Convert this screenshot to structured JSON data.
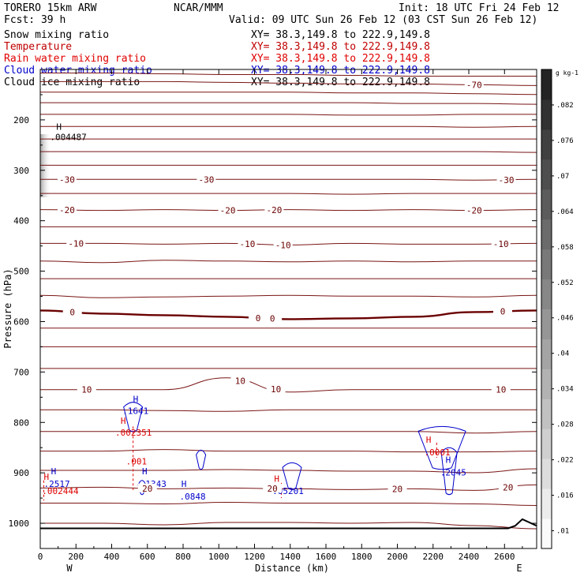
{
  "header": {
    "model": "TORERO   15km ARW",
    "agency": "NCAR/MMM",
    "init": "Init: 18 UTC Fri 24 Feb 12",
    "fcst": "Fcst:   39 h",
    "valid": "Valid: 09 UTC Sun 26 Feb 12 (03 CST Sun 26 Feb 12)"
  },
  "fields": [
    {
      "name": "Snow mixing ratio",
      "xy": "XY=  38.3,149.8 to 222.9,149.8",
      "color": "#000000"
    },
    {
      "name": "Temperature",
      "xy": "XY=  38.3,149.8 to 222.9,149.8",
      "color": "#c00000"
    },
    {
      "name": "Rain water mixing ratio",
      "xy": "XY=  38.3,149.8 to 222.9,149.8",
      "color": "#e00000"
    },
    {
      "name": "Cloud water mixing ratio",
      "xy": "XY=  38.3,149.8 to 222.9,149.8",
      "color": "#0000cc"
    },
    {
      "name": "Cloud ice mixing ratio",
      "xy": "XY=  38.3,149.8 to 222.9,149.8",
      "color": "#000000"
    }
  ],
  "colors": {
    "temperature_contour": "#7a1515",
    "freezing_line": "#6a0000",
    "rain": "#dd0000",
    "cloud_water": "#0000cc",
    "ground": "#000000"
  },
  "chart_data": {
    "type": "contour-cross-section",
    "xlabel": "Distance (km)",
    "ylabel": "Pressure (hPa)",
    "xlim": [
      0,
      2780
    ],
    "ylim": [
      1050,
      100
    ],
    "x_ticks": [
      0,
      200,
      400,
      600,
      800,
      1000,
      1200,
      1400,
      1600,
      1800,
      2000,
      2200,
      2400,
      2600
    ],
    "y_ticks": [
      200,
      300,
      400,
      500,
      600,
      700,
      800,
      900,
      1000
    ],
    "y_scale": "linear pressure, inverted",
    "x_end_labels": {
      "left": "W",
      "right": "E"
    },
    "colorbar": {
      "unit": "g kg-1",
      "ticks": [
        0.01,
        0.016,
        0.022,
        0.028,
        0.034,
        0.04,
        0.046,
        0.052,
        0.058,
        0.064,
        0.07,
        0.076,
        0.082
      ],
      "tick_labels": [
        ".01",
        ".016",
        ".022",
        ".028",
        ".034",
        ".04",
        ".046",
        ".052",
        ".058",
        ".064",
        ".07",
        ".076",
        ".082"
      ],
      "range": [
        0.007,
        0.088
      ]
    },
    "temperature_contours": [
      {
        "p": 1000,
        "var": [
          0,
          0,
          2,
          -1,
          -1,
          0,
          -1,
          3,
          7
        ]
      },
      {
        "p": 960,
        "var": [
          0,
          0,
          1,
          -1,
          0,
          0,
          0,
          1,
          3
        ]
      },
      {
        "p": 930,
        "var": [
          0,
          -1,
          1,
          0,
          1,
          2,
          1,
          3,
          -4
        ],
        "label": "20",
        "label_x": [
          600,
          1300,
          2000,
          2620
        ]
      },
      {
        "p": 895,
        "var": [
          0,
          0,
          0,
          -1,
          0,
          1,
          1,
          3,
          -2
        ]
      },
      {
        "p": 857,
        "var": [
          0,
          0,
          -2,
          0,
          0,
          0,
          1,
          1,
          0
        ]
      },
      {
        "p": 818,
        "var": [
          0,
          0,
          0,
          0,
          0,
          0,
          0,
          2,
          0
        ]
      },
      {
        "p": 775,
        "var": [
          0,
          0,
          1,
          2,
          0,
          0,
          0,
          0,
          0
        ]
      },
      {
        "p": 735,
        "var": [
          0,
          0,
          0,
          -15,
          3,
          0,
          0,
          0,
          0
        ],
        "label": "10",
        "label_x": [
          260,
          1120,
          1320,
          2580
        ]
      },
      {
        "p": 693,
        "var": [
          0,
          0,
          0,
          0,
          0,
          0,
          0,
          0,
          0
        ]
      },
      {
        "p": 650,
        "var": [
          0,
          0,
          0,
          0,
          0,
          0,
          0,
          0,
          0
        ]
      },
      {
        "p": 613,
        "var": [
          0,
          0,
          0,
          0,
          0,
          0,
          0,
          0,
          0
        ]
      },
      {
        "p": 578,
        "var": [
          0,
          4,
          6,
          8,
          11,
          10,
          8,
          2,
          0
        ],
        "label": "0",
        "label_x": [
          180,
          1220,
          1300,
          2590
        ],
        "freezing": true
      },
      {
        "p": 548,
        "var": [
          0,
          3,
          2,
          1,
          0,
          1,
          1,
          2,
          0
        ]
      },
      {
        "p": 515,
        "var": [
          0,
          0,
          0,
          0,
          0,
          0,
          0,
          0,
          0
        ]
      },
      {
        "p": 480,
        "var": [
          0,
          2,
          -1,
          0,
          1,
          0,
          1,
          0,
          0
        ]
      },
      {
        "p": 445,
        "var": [
          0,
          0,
          1,
          0,
          2,
          0,
          1,
          1,
          0
        ],
        "label": "-10",
        "label_x": [
          200,
          1160,
          1360,
          2580
        ]
      },
      {
        "p": 412,
        "var": [
          0,
          0,
          0,
          0,
          0,
          0,
          0,
          0,
          0
        ]
      },
      {
        "p": 378,
        "var": [
          0,
          1,
          0,
          1,
          0,
          1,
          0,
          1,
          0
        ],
        "label": "-20",
        "label_x": [
          150,
          1050,
          1310,
          2430
        ]
      },
      {
        "p": 346,
        "var": [
          0,
          0,
          0,
          0,
          0,
          1,
          0,
          0,
          0
        ]
      },
      {
        "p": 318,
        "var": [
          0,
          0,
          0,
          0,
          0,
          0,
          0,
          1,
          0
        ],
        "label": "-30",
        "label_x": [
          150,
          930,
          2610
        ]
      },
      {
        "p": 290,
        "var": [
          0,
          0,
          0,
          0,
          0,
          0,
          0,
          0,
          0
        ]
      },
      {
        "p": 263,
        "var": [
          0,
          0,
          0,
          0,
          0,
          0,
          0,
          0,
          1
        ]
      },
      {
        "p": 238,
        "var": [
          0,
          0,
          0,
          0,
          0,
          0,
          0,
          0,
          0
        ]
      },
      {
        "p": 213,
        "var": [
          0,
          0,
          0,
          0,
          0,
          0,
          0,
          1,
          0
        ]
      },
      {
        "p": 189,
        "var": [
          0,
          0,
          0,
          0,
          0,
          1,
          1,
          0,
          0
        ]
      },
      {
        "p": 166,
        "var": [
          0,
          0,
          0,
          0,
          0,
          0,
          1,
          1,
          2
        ]
      },
      {
        "p": 145,
        "var": [
          0,
          0,
          0,
          0,
          0,
          1,
          1,
          2,
          3
        ]
      },
      {
        "p": 124,
        "var": [
          0,
          0,
          0,
          1,
          2,
          3,
          3,
          4,
          5
        ],
        "label": "-70",
        "label_x": [
          2430
        ]
      },
      {
        "p": 107,
        "var": [
          0,
          0,
          1,
          2,
          2,
          3,
          4,
          4,
          4
        ]
      }
    ],
    "ground_surface": {
      "x": [
        0,
        2620,
        2660,
        2700,
        2780
      ],
      "p": [
        1010,
        1010,
        1005,
        992,
        1005
      ]
    },
    "rain_features": [
      {
        "x": 520,
        "p": [
          808,
          880,
          934
        ],
        "labels": [
          {
            "text": "H",
            "x": 450,
            "p": 803
          },
          {
            "text": ".002351",
            "x": 420,
            "p": 826
          },
          {
            "text": ".001",
            "x": 480,
            "p": 883
          }
        ]
      },
      {
        "x": 20,
        "p": [
          915,
          955
        ],
        "labels": [
          {
            "text": "H",
            "x": 20,
            "p": 914
          },
          {
            "text": ".002444",
            "x": 10,
            "p": 942
          }
        ]
      },
      {
        "x": 1350,
        "p": [
          920,
          950
        ],
        "labels": [
          {
            "text": "H",
            "x": 1310,
            "p": 918
          }
        ]
      },
      {
        "x": 2220,
        "p": [
          840,
          870
        ],
        "labels": [
          {
            "text": "H",
            "x": 2160,
            "p": 840
          },
          {
            "text": ".0001",
            "x": 2150,
            "p": 865
          }
        ]
      }
    ],
    "cloud_water_features": [
      {
        "text": "H",
        "x": 520,
        "p": 760
      },
      {
        "text": ".1641",
        "x": 460,
        "p": 783
      },
      {
        "text": "H",
        "x": 570,
        "p": 903
      },
      {
        "text": ".1343",
        "x": 560,
        "p": 928
      },
      {
        "text": "H",
        "x": 790,
        "p": 928
      },
      {
        "text": ".0848",
        "x": 780,
        "p": 953
      },
      {
        "text": "H",
        "x": 60,
        "p": 903
      },
      {
        "text": ".2517",
        "x": 20,
        "p": 928
      },
      {
        "text": ".05201",
        "x": 1300,
        "p": 942
      },
      {
        "text": "H",
        "x": 2270,
        "p": 880
      },
      {
        "text": ".2045",
        "x": 2240,
        "p": 905
      }
    ],
    "cloud_ice_max": {
      "text": "H",
      "text2": ".004487",
      "x": 90,
      "p": 235
    }
  }
}
